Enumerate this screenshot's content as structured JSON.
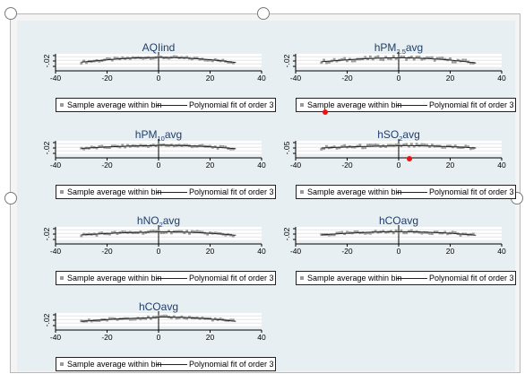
{
  "legend": {
    "sample_label": "Sample average within bin",
    "fit_label": "Polynomial fit of order 3"
  },
  "chart_data": [
    {
      "type": "scatter",
      "title": "AQIind",
      "ytick": "-.02",
      "xlim": [
        -40,
        40
      ],
      "xticks": [
        -40,
        -20,
        0,
        20,
        40
      ],
      "fit_left": [
        -0.3,
        0.9
      ],
      "fit_right": [
        0.9,
        -0.4
      ],
      "noise": 0.6
    },
    {
      "type": "scatter",
      "title": "hPM2.5avg",
      "ytick": "-.02",
      "xlim": [
        -40,
        40
      ],
      "xticks": [
        -40,
        -20,
        0,
        20,
        40
      ],
      "fit_left": [
        -0.2,
        0.8
      ],
      "fit_right": [
        0.8,
        -0.5
      ],
      "noise": 0.9
    },
    {
      "type": "scatter",
      "title": "hPM10avg",
      "ytick": "-.02",
      "xlim": [
        -40,
        40
      ],
      "xticks": [
        -40,
        -20,
        0,
        20,
        40
      ],
      "fit_left": [
        -0.1,
        0.6
      ],
      "fit_right": [
        0.7,
        -0.2
      ],
      "noise": 0.6
    },
    {
      "type": "scatter",
      "title": "hSO2avg",
      "ytick": "-.05",
      "xlim": [
        -40,
        40
      ],
      "xticks": [
        -40,
        -20,
        0,
        20,
        40
      ],
      "fit_left": [
        0.0,
        0.5
      ],
      "fit_right": [
        0.6,
        0.0
      ],
      "noise": 0.9
    },
    {
      "type": "scatter",
      "title": "hNO2avg",
      "ytick": "-.02",
      "xlim": [
        -40,
        40
      ],
      "xticks": [
        -40,
        -20,
        0,
        20,
        40
      ],
      "fit_left": [
        -0.2,
        0.5
      ],
      "fit_right": [
        0.6,
        -0.3
      ],
      "noise": 0.7
    },
    {
      "type": "scatter",
      "title": "hCOavg",
      "ytick": "-.02",
      "xlim": [
        -40,
        40
      ],
      "xticks": [
        -40,
        -20,
        0,
        20,
        40
      ],
      "fit_left": [
        -0.2,
        0.6
      ],
      "fit_right": [
        0.6,
        -0.3
      ],
      "noise": 0.7
    },
    {
      "type": "scatter",
      "title": "hCOavg",
      "ytick": "-.02",
      "xlim": [
        -40,
        40
      ],
      "xticks": [
        -40,
        -20,
        0,
        20,
        40
      ],
      "fit_left": [
        -0.3,
        0.6
      ],
      "fit_right": [
        0.8,
        -0.3
      ],
      "noise": 0.6
    }
  ],
  "annotation_colors": {
    "marker": "#e11111",
    "title": "#1f3e6b",
    "fit": "#222222",
    "sample": "#9a9a9a"
  }
}
